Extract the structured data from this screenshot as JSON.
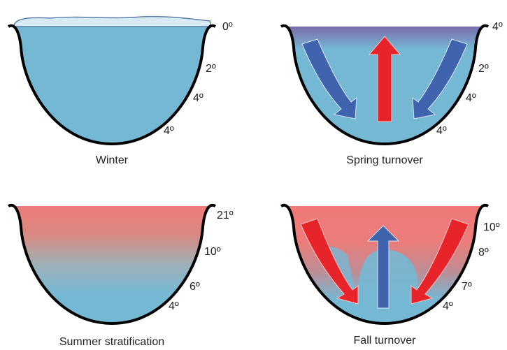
{
  "panels": {
    "winter": {
      "label": "Winter",
      "temps": [
        "0º",
        "2º",
        "4º",
        "4º"
      ]
    },
    "spring": {
      "label": "Spring turnover",
      "temps": [
        "4º",
        "2º",
        "4º",
        "4º"
      ]
    },
    "summer": {
      "label": "Summer stratification",
      "temps": [
        "21º",
        "10º",
        "6º",
        "4º"
      ]
    },
    "fall": {
      "label": "Fall turnover",
      "temps": [
        "10º",
        "8º",
        "7º",
        "4º"
      ]
    }
  },
  "colors": {
    "water": "#75b8d4",
    "warm": "#ef7a78",
    "cold_top": "#7a68a8",
    "ice": "#d8eaf3",
    "warm_arrow": "#e8242b",
    "cold_arrow": "#3f63ad"
  }
}
